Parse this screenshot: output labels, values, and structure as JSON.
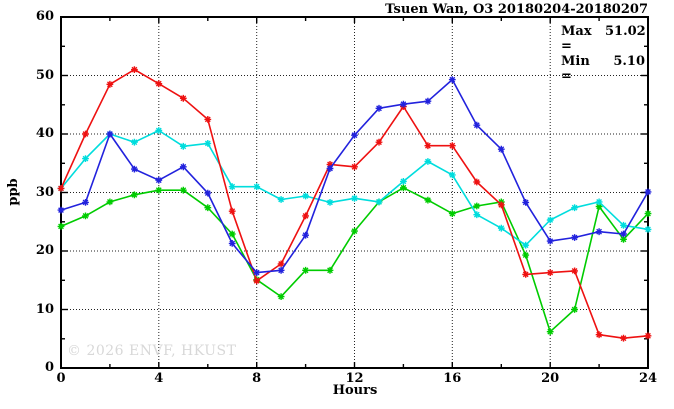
{
  "title": "Tsuen Wan, O3 20180204-20180207",
  "stats": {
    "max_label": "Max =",
    "max_value": "51.02",
    "min_label": "Min =",
    "min_value": "5.10"
  },
  "watermark": "© 2026 ENVF, HKUST",
  "chart_data": {
    "type": "line",
    "title": "Tsuen Wan, O3 20180204-20180207",
    "xlabel": "Hours",
    "ylabel": "ppb",
    "xlim": [
      0,
      24
    ],
    "ylim": [
      0,
      60
    ],
    "grid": true,
    "legend": "none",
    "marker": "asterisk",
    "xticks_major": [
      0,
      4,
      8,
      12,
      16,
      20,
      24
    ],
    "xticks_minor": [
      2,
      6,
      10,
      14,
      18,
      22
    ],
    "yticks_major": [
      0,
      10,
      20,
      30,
      40,
      50,
      60
    ],
    "yticks_minor": [
      5,
      15,
      25,
      35,
      45,
      55
    ],
    "grid_x": [
      4,
      8,
      12,
      16,
      20
    ],
    "grid_y": [
      10,
      20,
      30,
      40,
      50
    ],
    "x": [
      0,
      1,
      2,
      3,
      4,
      5,
      6,
      7,
      8,
      9,
      10,
      11,
      12,
      13,
      14,
      15,
      16,
      17,
      18,
      19,
      20,
      21,
      22,
      23,
      24
    ],
    "series": [
      {
        "name": "green",
        "color": "#00cc00",
        "values": [
          24.2,
          26.0,
          28.4,
          29.6,
          30.4,
          30.4,
          27.4,
          22.9,
          15.1,
          12.2,
          16.7,
          16.7,
          23.4,
          28.4,
          30.8,
          28.7,
          26.4,
          27.7,
          28.4,
          19.3,
          6.2,
          10.0,
          27.6,
          22.0,
          26.4
        ]
      },
      {
        "name": "cyan",
        "color": "#00dddd",
        "values": [
          30.7,
          35.8,
          40.0,
          38.6,
          40.6,
          37.9,
          38.4,
          31.0,
          31.0,
          28.8,
          29.4,
          28.3,
          29.0,
          28.4,
          31.9,
          35.3,
          33.0,
          26.2,
          23.9,
          21.0,
          25.3,
          27.4,
          28.4,
          24.4,
          23.7
        ]
      },
      {
        "name": "red",
        "color": "#ee1111",
        "values": [
          30.7,
          40.0,
          48.5,
          51.0,
          48.6,
          46.1,
          42.5,
          26.8,
          14.9,
          17.8,
          26.0,
          34.8,
          34.4,
          38.6,
          44.7,
          38.0,
          38.0,
          31.8,
          27.9,
          16.0,
          16.3,
          16.6,
          5.7,
          5.1,
          5.5
        ]
      },
      {
        "name": "blue",
        "color": "#2222dd",
        "values": [
          27.0,
          28.3,
          40.0,
          34.0,
          32.1,
          34.4,
          29.9,
          21.3,
          16.3,
          16.7,
          22.7,
          34.1,
          39.8,
          44.4,
          45.1,
          45.6,
          49.3,
          41.5,
          37.4,
          28.3,
          21.7,
          22.3,
          23.3,
          22.9,
          30.1
        ]
      }
    ],
    "annotations": {
      "max": "51.02",
      "min": "5.10"
    }
  }
}
